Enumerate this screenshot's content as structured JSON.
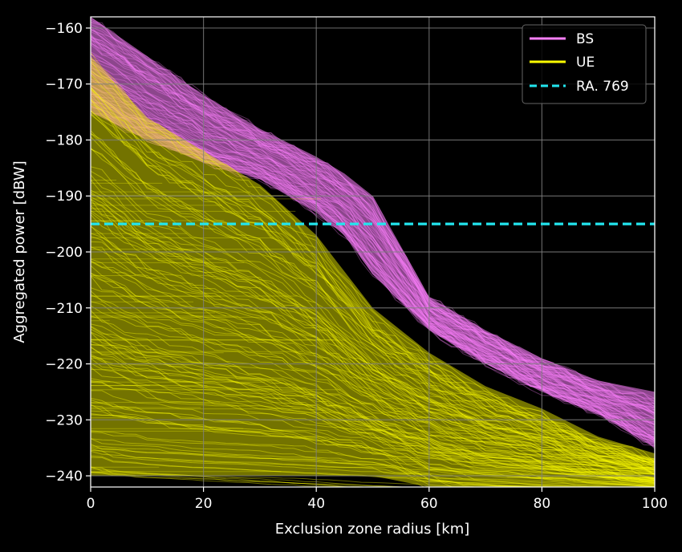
{
  "chart_data": {
    "type": "line",
    "title": "",
    "xlabel": "Exclusion zone radius [km]",
    "ylabel": "Aggregated power [dBW]",
    "xlim": [
      0,
      100
    ],
    "ylim": [
      -242,
      -158
    ],
    "xticks": [
      0,
      20,
      40,
      60,
      80,
      100
    ],
    "yticks": [
      -160,
      -170,
      -180,
      -190,
      -200,
      -210,
      -220,
      -230,
      -240
    ],
    "grid": true,
    "legend_position": "top-right",
    "background": "#000000",
    "series": [
      {
        "name": "BS",
        "color": "#ff80ff",
        "style": "ensemble-band",
        "x": [
          0,
          10,
          20,
          30,
          40,
          45,
          50,
          60,
          70,
          80,
          90,
          100
        ],
        "upper": [
          -158,
          -165,
          -172,
          -178,
          -183,
          -186,
          -190,
          -208,
          -214,
          -219,
          -223,
          -225
        ],
        "lower": [
          -175,
          -180,
          -184,
          -187,
          -193,
          -197,
          -204,
          -214,
          -220,
          -225,
          -229,
          -235
        ]
      },
      {
        "name": "UE",
        "color": "#ffff00",
        "style": "ensemble-band",
        "x": [
          0,
          10,
          20,
          30,
          40,
          50,
          60,
          70,
          80,
          90,
          100
        ],
        "upper": [
          -165,
          -176,
          -182,
          -188,
          -197,
          -210,
          -218,
          -224,
          -228,
          -233,
          -236
        ],
        "lower": [
          -240,
          -240,
          -240,
          -240,
          -240,
          -240,
          -242,
          -242,
          -242,
          -242,
          -242
        ]
      },
      {
        "name": "RA. 769",
        "color": "#22e5ee",
        "style": "dashed",
        "x": [
          0,
          100
        ],
        "y": [
          -195,
          -195
        ]
      }
    ]
  }
}
